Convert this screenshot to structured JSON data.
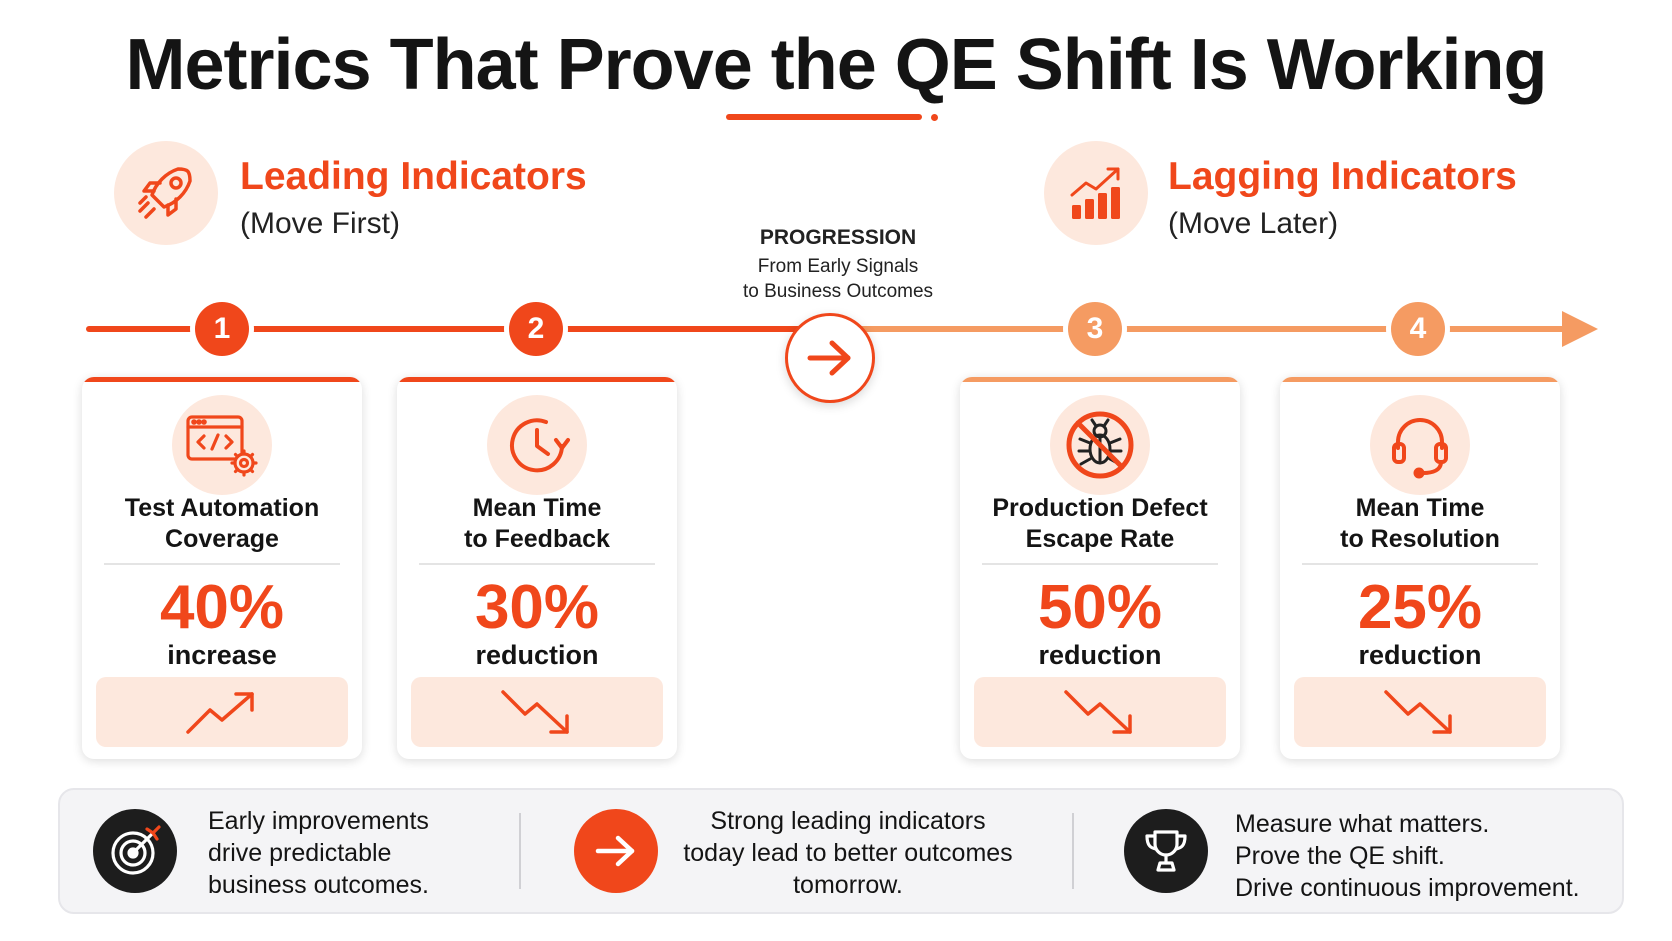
{
  "title": "Metrics That Prove the QE Shift Is Working",
  "leading": {
    "icon": "rocket-icon",
    "title": "Leading Indicators",
    "subtitle": "(Move First)"
  },
  "lagging": {
    "icon": "bar-chart-growth-icon",
    "title": "Lagging Indicators",
    "subtitle": "(Move Later)"
  },
  "progression": {
    "label": "PROGRESSION",
    "line1": "From Early Signals",
    "line2": "to Business Outcomes"
  },
  "steps": [
    "1",
    "2",
    "3",
    "4"
  ],
  "colors": {
    "accent": "#f0471b",
    "accent_light": "#f59b62",
    "tint": "#fde8dd",
    "dark": "#141414"
  },
  "cards": [
    {
      "icon": "code-window-gear-icon",
      "name1": "Test Automation",
      "name2": "Coverage",
      "value": "40%",
      "change": "increase",
      "trend": "trend-up-icon"
    },
    {
      "icon": "clock-refresh-icon",
      "name1": "Mean Time",
      "name2": "to Feedback",
      "value": "30%",
      "change": "reduction",
      "trend": "trend-down-icon"
    },
    {
      "icon": "no-bug-icon",
      "name1": "Production Defect",
      "name2": "Escape Rate",
      "value": "50%",
      "change": "reduction",
      "trend": "trend-down-icon"
    },
    {
      "icon": "headset-icon",
      "name1": "Mean Time",
      "name2": "to Resolution",
      "value": "25%",
      "change": "reduction",
      "trend": "trend-down-icon"
    }
  ],
  "bottom": [
    {
      "icon": "target-icon",
      "lines": [
        "Early improvements",
        "drive predictable",
        "business outcomes."
      ]
    },
    {
      "icon": "arrow-right-icon",
      "lines": [
        "Strong leading indicators",
        "today lead to better outcomes",
        "tomorrow."
      ]
    },
    {
      "icon": "trophy-icon",
      "lines": [
        "Measure what matters.",
        "Prove the QE shift.",
        "Drive continuous improvement."
      ]
    }
  ]
}
